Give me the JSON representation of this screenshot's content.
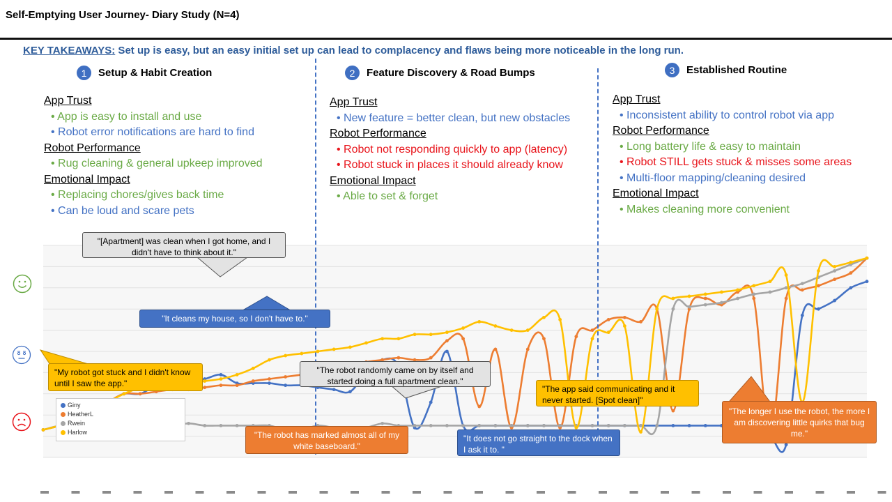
{
  "title": "Self-Emptying User Journey- Diary Study (N=4)",
  "takeaway": {
    "label": "KEY TAKEAWAYS:",
    "text": " Set up is easy, but an easy initial set up can lead to complacency and flaws being more noticeable in the long run."
  },
  "phases": [
    {
      "num": "1",
      "title": "Setup & Habit Creation"
    },
    {
      "num": "2",
      "title": "Feature Discovery & Road Bumps"
    },
    {
      "num": "3",
      "title": "Established Routine"
    }
  ],
  "col1": {
    "h1": "App Trust",
    "b1": "App is easy to install and use",
    "b2": "Robot error notifications are hard to find",
    "h2": "Robot Performance",
    "b3": "Rug cleaning & general upkeep improved",
    "h3": "Emotional Impact",
    "b4": "Replacing chores/gives back time",
    "b5": "Can be loud and scare pets"
  },
  "col2": {
    "h1": "App Trust",
    "b1": "New feature = better clean, but new obstacles",
    "h2": "Robot Performance",
    "b2": "Robot not responding quickly to app (latency)",
    "b3": "Robot stuck in places it should already know",
    "h3": "Emotional Impact",
    "b4": "Able to set & forget"
  },
  "col3": {
    "h1": "App Trust",
    "b1": "Inconsistent ability to control robot via app",
    "h2": "Robot Performance",
    "b2": "Long battery life & easy to maintain",
    "b3": "Robot STILL gets stuck & misses some areas",
    "b4": "Multi-floor mapping/cleaning desired",
    "h3": "Emotional Impact",
    "b5": "Makes cleaning more convenient"
  },
  "quotes": {
    "q1": "\"[Apartment] was clean when I got home, and I didn't have to think about it.\"",
    "q2": "\"It cleans my house, so I don't have to.\"",
    "q3": "\"My robot got stuck and I didn't know until I saw the app.\"",
    "q4": "\"The robot randomly came on by itself and started doing a full apartment clean.\"",
    "q5": "\"The robot has marked almost all of my white baseboard.\"",
    "q6": "\"It does not go straight to the dock when I ask it to. \"",
    "q7": "\"The app said communicating and it never started. [Spot clean]\"",
    "q8": "\"The longer I use the robot, the more I am discovering little quirks that bug me.\""
  },
  "colors": {
    "green": "#6aaa46",
    "blue": "#4472c4",
    "red": "#e8141b",
    "orange": "#ed7d31",
    "grey": "#a5a5a5",
    "yellow": "#ffc000"
  },
  "chart_data": {
    "type": "line",
    "x": [
      1,
      2,
      3,
      4,
      5,
      6,
      7,
      8,
      9,
      10,
      11,
      12,
      13,
      14,
      15,
      16,
      17,
      18,
      19,
      20,
      21,
      22,
      23,
      24,
      25,
      26,
      27,
      28,
      29,
      30,
      31,
      32,
      33,
      34,
      35,
      36,
      37,
      38,
      39,
      40,
      41,
      42,
      43,
      44,
      45,
      46,
      47,
      48,
      49,
      50,
      51,
      52
    ],
    "ylim": [
      0,
      10
    ],
    "grid": true,
    "legend_position": "bottom-left",
    "series": [
      {
        "name": "Giny",
        "color": "#4472c4",
        "values": [
          1.3,
          1.5,
          1.8,
          2.2,
          2.6,
          3.0,
          3.0,
          3.4,
          3.6,
          3.6,
          3.7,
          3.9,
          3.5,
          3.5,
          3.5,
          3.4,
          3.4,
          3.3,
          3.2,
          3.1,
          4.0,
          4.6,
          4.3,
          1.4,
          2.6,
          5.0,
          1.5,
          1.5,
          1.5,
          1.5,
          1.5,
          1.5,
          1.5,
          1.5,
          1.5,
          1.5,
          1.5,
          1.5,
          1.5,
          1.5,
          1.5,
          1.5,
          1.5,
          1.5,
          1.0,
          1.0,
          0.6,
          6.7,
          7.0,
          7.4,
          8.0,
          8.3
        ]
      },
      {
        "name": "HeatherL",
        "color": "#ed7d31",
        "values": [
          1.3,
          1.5,
          1.8,
          2.2,
          2.6,
          3.0,
          3.0,
          3.1,
          3.2,
          3.2,
          3.3,
          3.4,
          3.4,
          3.6,
          3.7,
          3.8,
          3.9,
          4.0,
          4.1,
          4.3,
          4.5,
          4.6,
          4.7,
          4.6,
          4.7,
          5.5,
          5.6,
          2.4,
          5.1,
          1.4,
          5.1,
          5.6,
          1.4,
          5.7,
          6.0,
          6.5,
          6.6,
          6.4,
          7.0,
          2.2,
          7.0,
          7.5,
          7.2,
          7.8,
          7.5,
          0.9,
          7.5,
          7.9,
          8.1,
          8.4,
          8.7,
          9.4
        ]
      },
      {
        "name": "Rwein",
        "color": "#a5a5a5",
        "values": [
          1.3,
          1.5,
          1.6,
          1.6,
          1.7,
          1.7,
          1.6,
          1.6,
          1.5,
          1.6,
          1.5,
          1.5,
          1.5,
          1.5,
          1.5,
          1.3,
          1.3,
          1.5,
          1.4,
          1.3,
          1.4,
          1.6,
          1.5,
          1.5,
          1.5,
          1.5,
          1.5,
          1.5,
          1.5,
          1.5,
          1.5,
          1.5,
          1.5,
          1.5,
          1.5,
          1.5,
          1.5,
          1.5,
          1.5,
          7.0,
          7.1,
          7.2,
          7.3,
          7.5,
          7.7,
          7.8,
          8.0,
          8.2,
          8.5,
          8.8,
          9.1,
          9.4
        ]
      },
      {
        "name": "Harlow",
        "color": "#ffc000",
        "values": [
          1.3,
          1.5,
          1.8,
          2.2,
          2.6,
          3.0,
          3.3,
          3.6,
          3.7,
          3.5,
          3.6,
          3.7,
          3.9,
          4.2,
          4.6,
          4.8,
          4.9,
          5.0,
          5.1,
          5.2,
          5.4,
          5.6,
          5.6,
          5.8,
          5.8,
          5.9,
          6.1,
          6.4,
          6.2,
          6.0,
          6.0,
          6.6,
          6.5,
          1.4,
          5.6,
          5.9,
          6.2,
          1.2,
          7.0,
          7.5,
          7.6,
          7.7,
          7.8,
          7.9,
          8.1,
          8.3,
          8.6,
          2.6,
          8.8,
          9.0,
          9.2,
          9.4
        ]
      }
    ]
  }
}
